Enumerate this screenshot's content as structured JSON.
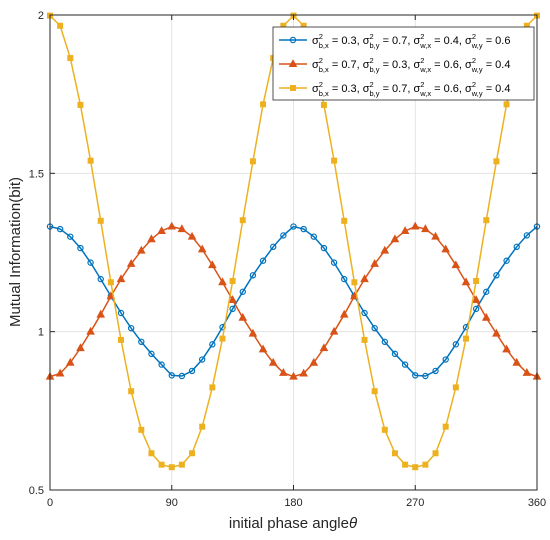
{
  "chart_data": {
    "type": "line",
    "xlabel": "initial phase angle",
    "xlabel_symbol": "θ",
    "ylabel": "Mutual Information(bit)",
    "xlim": [
      0,
      360
    ],
    "ylim": [
      0.5,
      2
    ],
    "xticks": [
      "0",
      "90",
      "180",
      "270",
      "360"
    ],
    "yticks": [
      "0.5",
      "1",
      "1.5",
      "2"
    ],
    "grid": true,
    "legend_position": "top-right",
    "x": [
      0,
      7.5,
      15,
      22.5,
      30,
      37.5,
      45,
      52.5,
      60,
      67.5,
      75,
      82.5,
      90,
      97.5,
      105,
      112.5,
      120,
      127.5,
      135,
      142.5,
      150,
      157.5,
      165,
      172.5,
      180,
      187.5,
      195,
      202.5,
      210,
      217.5,
      225,
      232.5,
      240,
      247.5,
      255,
      262.5,
      270,
      277.5,
      285,
      292.5,
      300,
      307.5,
      315,
      322.5,
      330,
      337.5,
      345,
      352.5,
      360
    ],
    "series": [
      {
        "legend": [
          {
            "t": "σ"
          },
          {
            "t": "2",
            "s": "sup"
          },
          {
            "t": "b,x",
            "s": "sub"
          },
          {
            "t": " = 0.3, "
          },
          {
            "t": "σ"
          },
          {
            "t": "2",
            "s": "sup"
          },
          {
            "t": "b,y",
            "s": "sub"
          },
          {
            "t": " = 0.7, "
          },
          {
            "t": "σ"
          },
          {
            "t": "2",
            "s": "sup"
          },
          {
            "t": "w,x",
            "s": "sub"
          },
          {
            "t": " = 0.4, "
          },
          {
            "t": "σ"
          },
          {
            "t": "2",
            "s": "sup"
          },
          {
            "t": "w,y",
            "s": "sub"
          },
          {
            "t": " = 0.6"
          }
        ],
        "color": "#0072BD",
        "marker": "circle",
        "values": [
          1.332,
          1.324,
          1.3,
          1.264,
          1.218,
          1.166,
          1.112,
          1.059,
          1.011,
          0.968,
          0.93,
          0.896,
          0.862,
          0.86,
          0.876,
          0.912,
          0.96,
          1.014,
          1.072,
          1.126,
          1.178,
          1.224,
          1.268,
          1.304,
          1.332,
          1.324,
          1.3,
          1.264,
          1.218,
          1.166,
          1.112,
          1.059,
          1.011,
          0.968,
          0.93,
          0.896,
          0.862,
          0.86,
          0.876,
          0.912,
          0.96,
          1.014,
          1.072,
          1.126,
          1.178,
          1.224,
          1.268,
          1.304,
          1.332
        ]
      },
      {
        "legend": [
          {
            "t": "σ"
          },
          {
            "t": "2",
            "s": "sup"
          },
          {
            "t": "b,x",
            "s": "sub"
          },
          {
            "t": " = 0.7, "
          },
          {
            "t": "σ"
          },
          {
            "t": "2",
            "s": "sup"
          },
          {
            "t": "b,y",
            "s": "sub"
          },
          {
            "t": " = 0.3, "
          },
          {
            "t": "σ"
          },
          {
            "t": "2",
            "s": "sup"
          },
          {
            "t": "w,x",
            "s": "sub"
          },
          {
            "t": " = 0.6, "
          },
          {
            "t": "σ"
          },
          {
            "t": "2",
            "s": "sup"
          },
          {
            "t": "w,y",
            "s": "sub"
          },
          {
            "t": " = 0.4"
          }
        ],
        "color": "#D95319",
        "marker": "triangle",
        "values": [
          0.858,
          0.868,
          0.902,
          0.948,
          1.0,
          1.054,
          1.112,
          1.166,
          1.214,
          1.256,
          1.292,
          1.318,
          1.332,
          1.324,
          1.3,
          1.26,
          1.21,
          1.156,
          1.1,
          1.044,
          0.994,
          0.944,
          0.902,
          0.87,
          0.858,
          0.868,
          0.902,
          0.948,
          1.0,
          1.054,
          1.112,
          1.166,
          1.214,
          1.256,
          1.292,
          1.318,
          1.332,
          1.324,
          1.3,
          1.26,
          1.21,
          1.156,
          1.1,
          1.044,
          0.994,
          0.944,
          0.902,
          0.87,
          0.858
        ]
      },
      {
        "legend": [
          {
            "t": "σ"
          },
          {
            "t": "2",
            "s": "sup"
          },
          {
            "t": "b,x",
            "s": "sub"
          },
          {
            "t": " = 0.3, "
          },
          {
            "t": "σ"
          },
          {
            "t": "2",
            "s": "sup"
          },
          {
            "t": "b,y",
            "s": "sub"
          },
          {
            "t": " = 0.7, "
          },
          {
            "t": "σ"
          },
          {
            "t": "2",
            "s": "sup"
          },
          {
            "t": "w,x",
            "s": "sub"
          },
          {
            "t": " = 0.6, "
          },
          {
            "t": "σ"
          },
          {
            "t": "2",
            "s": "sup"
          },
          {
            "t": "w,y",
            "s": "sub"
          },
          {
            "t": " = 0.4"
          }
        ],
        "color": "#EDB120",
        "marker": "square",
        "values": [
          1.998,
          1.966,
          1.864,
          1.716,
          1.54,
          1.35,
          1.156,
          0.974,
          0.812,
          0.69,
          0.616,
          0.58,
          0.572,
          0.58,
          0.616,
          0.7,
          0.824,
          0.978,
          1.16,
          1.352,
          1.538,
          1.718,
          1.864,
          1.966,
          1.998,
          1.966,
          1.864,
          1.716,
          1.54,
          1.35,
          1.156,
          0.974,
          0.812,
          0.69,
          0.616,
          0.58,
          0.572,
          0.58,
          0.616,
          0.7,
          0.824,
          0.978,
          1.16,
          1.352,
          1.538,
          1.718,
          1.864,
          1.966,
          1.998
        ]
      }
    ]
  }
}
